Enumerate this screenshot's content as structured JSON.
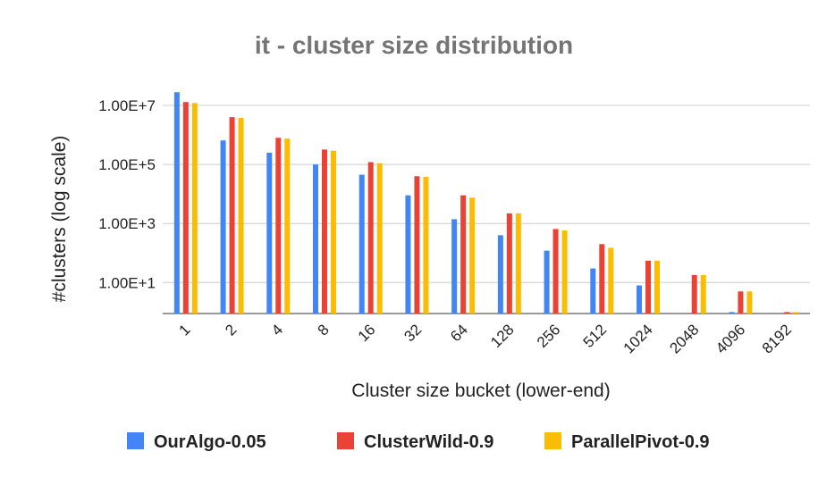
{
  "chart_data": {
    "type": "bar",
    "title": "it - cluster size distribution",
    "xlabel": "Cluster size bucket (lower-end)",
    "ylabel": "#clusters (log scale)",
    "y_scale": "log",
    "ylim": [
      0.5,
      40000000
    ],
    "y_ticks": [
      {
        "value": 10000000,
        "label": "1.00E+7"
      },
      {
        "value": 100000,
        "label": "1.00E+5"
      },
      {
        "value": 1000,
        "label": "1.00E+3"
      },
      {
        "value": 10,
        "label": "1.00E+1"
      }
    ],
    "grid": true,
    "legend_position": "bottom",
    "categories": [
      "1",
      "2",
      "4",
      "8",
      "16",
      "32",
      "64",
      "128",
      "256",
      "512",
      "1024",
      "2048",
      "4096",
      "8192"
    ],
    "series": [
      {
        "name": "OurAlgo-0.05",
        "color": "#4285F4",
        "values": [
          28000000,
          650000,
          250000,
          100000,
          45000,
          9000,
          1400,
          400,
          120,
          30,
          8,
          null,
          1,
          null
        ]
      },
      {
        "name": "ClusterWild-0.9",
        "color": "#EA4335",
        "values": [
          13000000,
          4000000,
          800000,
          320000,
          120000,
          40000,
          9000,
          2200,
          650,
          200,
          55,
          18,
          5,
          1
        ]
      },
      {
        "name": "ParallelPivot-0.9",
        "color": "#FBBC04",
        "values": [
          12000000,
          3800000,
          750000,
          290000,
          110000,
          38000,
          7500,
          2200,
          580,
          150,
          55,
          18,
          5,
          1
        ]
      }
    ]
  }
}
